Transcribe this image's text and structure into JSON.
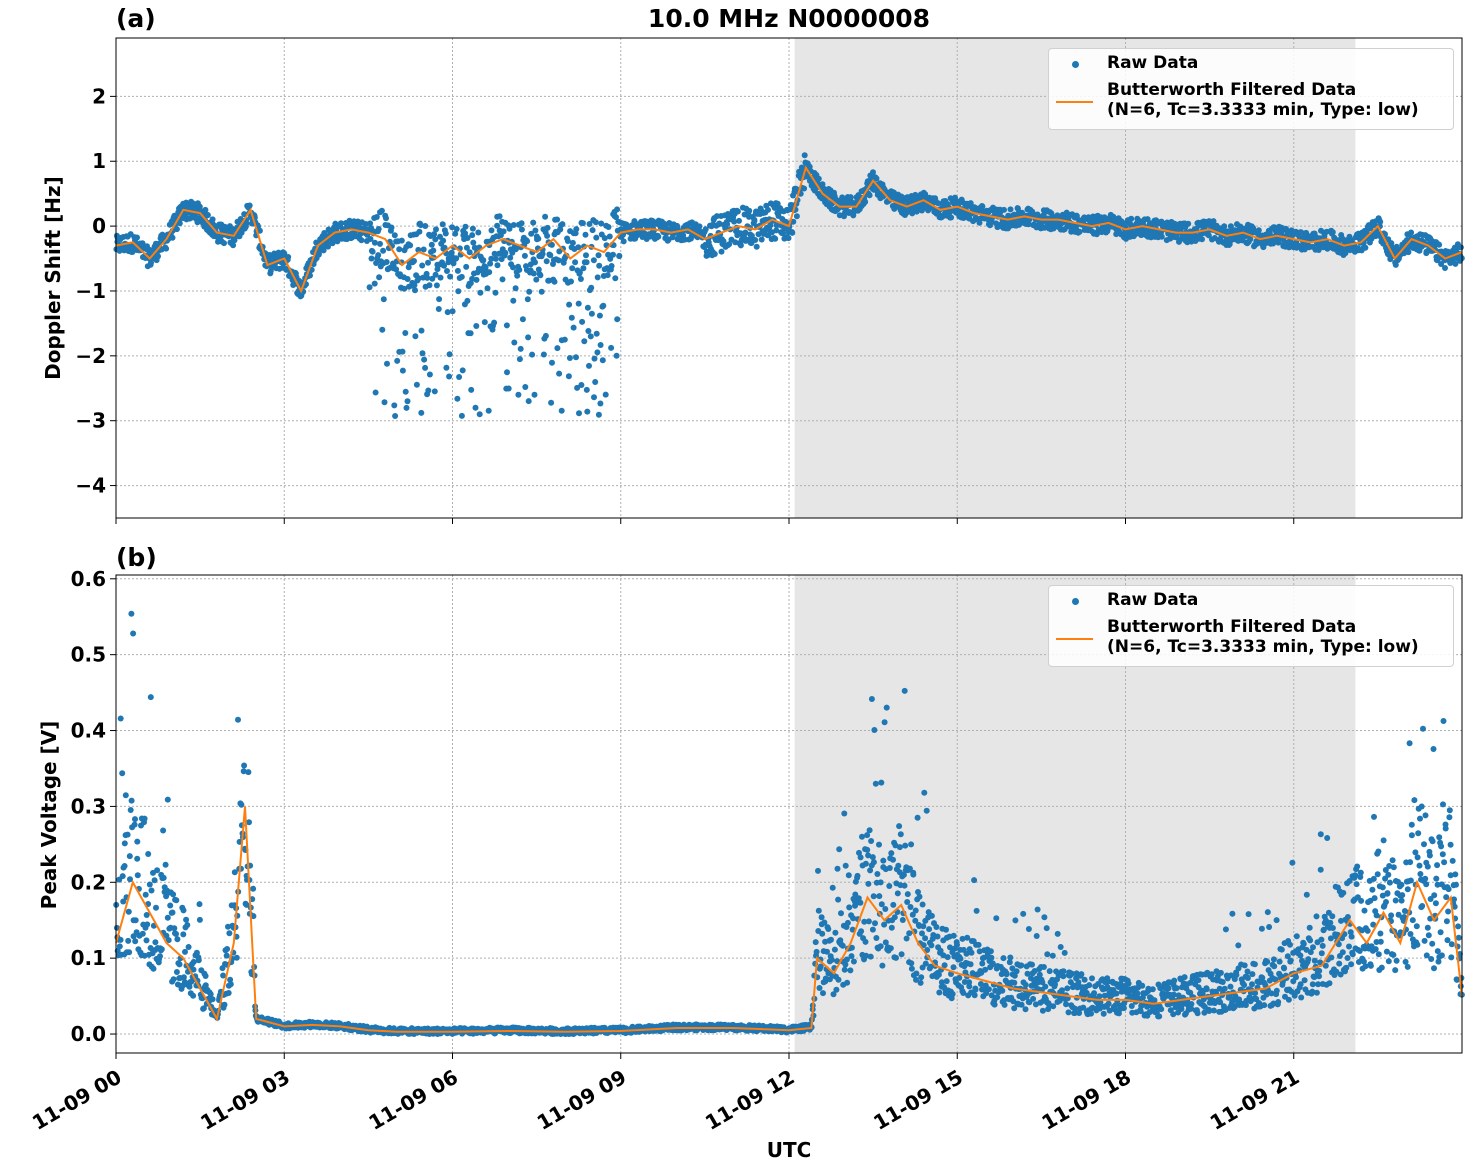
{
  "figure": {
    "title": "10.0 MHz N0000008",
    "xlabel": "UTC",
    "colors": {
      "raw": "#1f77b4",
      "filtered": "#ff7f0e",
      "shade": "#e6e6e6",
      "grid": "#b0b0b0"
    }
  },
  "legend": {
    "raw": "Raw Data",
    "filtered_line1": "Butterworth Filtered Data",
    "filtered_line2": "(N=6, Tc=3.3333 min, Type: low)"
  },
  "chart_data": [
    {
      "type": "scatter",
      "panel_label": "(a)",
      "title": "10.0 MHz N0000008",
      "ylabel": "Doppler Shift [Hz]",
      "xlabel": "",
      "xlim_hours": [
        0,
        24
      ],
      "ylim": [
        -4.5,
        2.9
      ],
      "yticks": [
        -4,
        -3,
        -2,
        -1,
        0,
        1,
        2
      ],
      "ytick_labels": [
        "−4",
        "−3",
        "−2",
        "−1",
        "0",
        "1",
        "2"
      ],
      "shaded_region_hours": [
        12.1,
        22.1
      ],
      "grid": true,
      "legend_position": "top-right",
      "series": [
        {
          "name": "Raw Data",
          "kind": "points"
        },
        {
          "name": "Butterworth Filtered Data\n(N=6, Tc=3.3333 min, Type: low)",
          "kind": "line",
          "x_hours": [
            0,
            0.3,
            0.6,
            0.9,
            1.2,
            1.5,
            1.8,
            2.1,
            2.4,
            2.7,
            3.0,
            3.3,
            3.6,
            3.9,
            4.2,
            4.5,
            4.8,
            5.1,
            5.4,
            5.7,
            6.0,
            6.3,
            6.6,
            6.9,
            7.2,
            7.5,
            7.8,
            8.1,
            8.4,
            8.7,
            9.0,
            9.3,
            9.6,
            9.9,
            10.2,
            10.5,
            10.8,
            11.1,
            11.4,
            11.7,
            12.0,
            12.3,
            12.6,
            12.9,
            13.2,
            13.5,
            13.8,
            14.1,
            14.4,
            14.7,
            15.0,
            15.3,
            15.6,
            15.9,
            16.2,
            16.5,
            16.8,
            17.1,
            17.4,
            17.7,
            18.0,
            18.3,
            18.6,
            18.9,
            19.2,
            19.5,
            19.8,
            20.1,
            20.4,
            20.7,
            21.0,
            21.3,
            21.6,
            21.9,
            22.2,
            22.5,
            22.8,
            23.1,
            23.4,
            23.7,
            24.0
          ],
          "y": [
            -0.3,
            -0.25,
            -0.5,
            -0.2,
            0.25,
            0.2,
            -0.1,
            -0.15,
            0.25,
            -0.6,
            -0.5,
            -1.0,
            -0.3,
            -0.1,
            -0.05,
            -0.1,
            -0.2,
            -0.6,
            -0.4,
            -0.5,
            -0.3,
            -0.5,
            -0.3,
            -0.2,
            -0.3,
            -0.4,
            -0.2,
            -0.5,
            -0.3,
            -0.4,
            -0.1,
            -0.05,
            -0.05,
            -0.1,
            -0.05,
            -0.2,
            -0.1,
            0.0,
            -0.05,
            0.1,
            0.0,
            0.9,
            0.5,
            0.3,
            0.3,
            0.7,
            0.4,
            0.3,
            0.4,
            0.25,
            0.3,
            0.2,
            0.15,
            0.1,
            0.15,
            0.1,
            0.1,
            0.05,
            0.0,
            0.05,
            -0.05,
            0.0,
            -0.05,
            -0.1,
            -0.1,
            -0.05,
            -0.15,
            -0.1,
            -0.2,
            -0.15,
            -0.2,
            -0.25,
            -0.2,
            -0.3,
            -0.25,
            0.0,
            -0.5,
            -0.2,
            -0.3,
            -0.5,
            -0.4
          ]
        }
      ]
    },
    {
      "type": "scatter",
      "panel_label": "(b)",
      "ylabel": "Peak Voltage [V]",
      "xlabel": "UTC",
      "xlim_hours": [
        0,
        24
      ],
      "ylim": [
        -0.025,
        0.605
      ],
      "yticks": [
        0.0,
        0.1,
        0.2,
        0.3,
        0.4,
        0.5,
        0.6
      ],
      "ytick_labels": [
        "0.0",
        "0.1",
        "0.2",
        "0.3",
        "0.4",
        "0.5",
        "0.6"
      ],
      "xticks_hours": [
        0,
        3,
        6,
        9,
        12,
        15,
        18,
        21
      ],
      "xtick_labels": [
        "11-09 00",
        "11-09 03",
        "11-09 06",
        "11-09 09",
        "11-09 12",
        "11-09 15",
        "11-09 18",
        "11-09 21"
      ],
      "shaded_region_hours": [
        12.1,
        22.1
      ],
      "grid": true,
      "legend_position": "top-right",
      "series": [
        {
          "name": "Raw Data",
          "kind": "points"
        },
        {
          "name": "Butterworth Filtered Data\n(N=6, Tc=3.3333 min, Type: low)",
          "kind": "line",
          "x_hours": [
            0,
            0.3,
            0.6,
            0.9,
            1.2,
            1.5,
            1.8,
            2.1,
            2.3,
            2.5,
            3.0,
            3.5,
            4.0,
            4.5,
            5.0,
            6.0,
            7.0,
            8.0,
            9.0,
            10.0,
            11.0,
            12.0,
            12.4,
            12.5,
            12.8,
            13.1,
            13.4,
            13.7,
            14.0,
            14.3,
            14.6,
            15.0,
            15.5,
            16.0,
            16.5,
            17.0,
            17.5,
            18.0,
            18.5,
            19.0,
            19.5,
            20.0,
            20.5,
            21.0,
            21.5,
            22.0,
            22.3,
            22.6,
            22.9,
            23.2,
            23.5,
            23.8,
            24.0
          ],
          "y": [
            0.12,
            0.2,
            0.16,
            0.12,
            0.1,
            0.06,
            0.02,
            0.12,
            0.3,
            0.02,
            0.01,
            0.012,
            0.01,
            0.005,
            0.003,
            0.003,
            0.004,
            0.003,
            0.004,
            0.008,
            0.008,
            0.005,
            0.008,
            0.1,
            0.08,
            0.12,
            0.18,
            0.15,
            0.17,
            0.12,
            0.09,
            0.08,
            0.07,
            0.06,
            0.055,
            0.05,
            0.045,
            0.045,
            0.04,
            0.045,
            0.05,
            0.055,
            0.06,
            0.08,
            0.09,
            0.15,
            0.12,
            0.16,
            0.12,
            0.2,
            0.15,
            0.18,
            0.05
          ]
        }
      ]
    }
  ]
}
